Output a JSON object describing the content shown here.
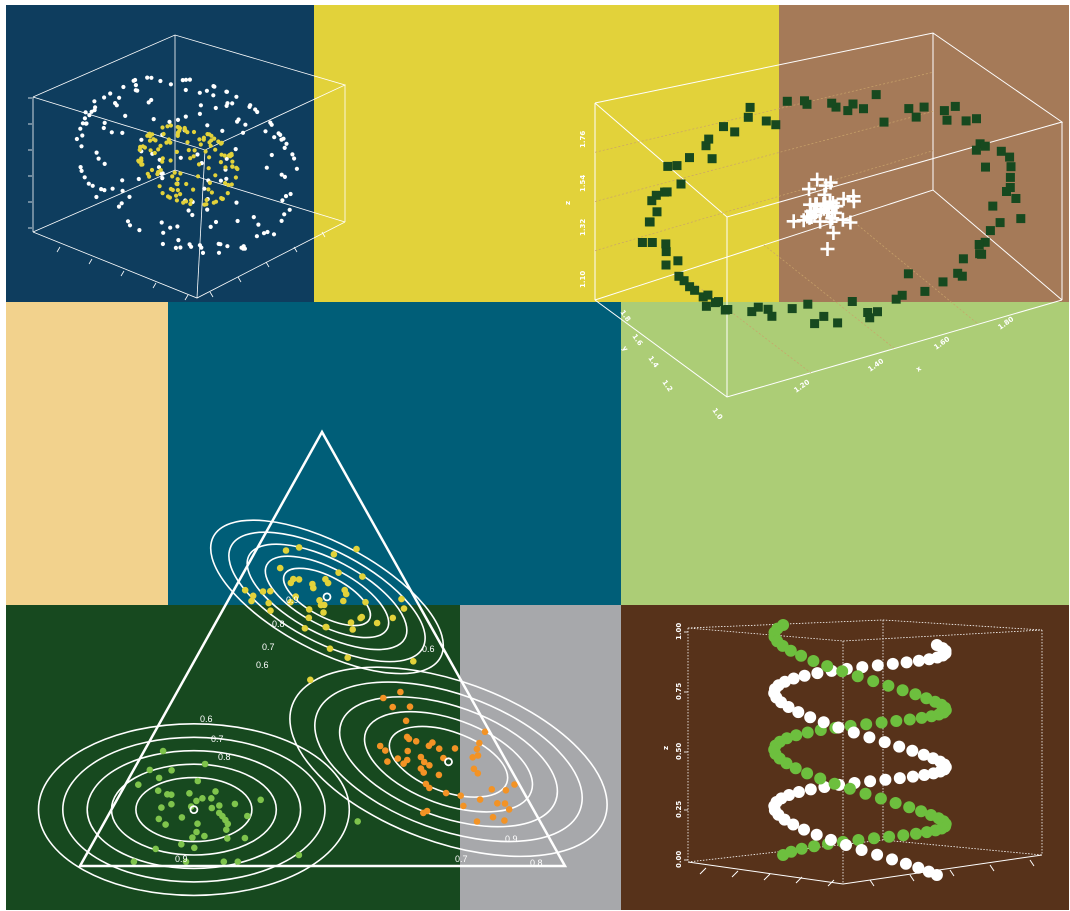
{
  "background_panels": [
    {
      "name": "panel-navy",
      "color": "#0e3d5e"
    },
    {
      "name": "panel-mustard",
      "color": "#e2d23a"
    },
    {
      "name": "panel-tan",
      "color": "#a57a58"
    },
    {
      "name": "panel-sand",
      "color": "#f2d28d"
    },
    {
      "name": "panel-teal",
      "color": "#005e78"
    },
    {
      "name": "panel-lightgreen",
      "color": "#accd76"
    },
    {
      "name": "panel-darkgreen",
      "color": "#17491f"
    },
    {
      "name": "panel-grey",
      "color": "#a7a8ab"
    },
    {
      "name": "panel-brown",
      "color": "#57321a"
    }
  ],
  "chart_data": [
    {
      "id": "sphere-3d",
      "type": "scatter",
      "dimensions": 3,
      "description_series": [
        {
          "name": "",
          "marker": "circle",
          "color": "#ffffff",
          "shape": "outer spherical shell",
          "radius": 1.0
        },
        {
          "name": "",
          "marker": "circle",
          "color": "#e2d23a",
          "shape": "inner spherical shell",
          "radius": 0.45
        }
      ],
      "title": "",
      "xlabel": "",
      "ylabel": "",
      "zlabel": "",
      "grid": false
    },
    {
      "id": "spiral-3d",
      "type": "scatter",
      "dimensions": 3,
      "series": [
        {
          "name": "",
          "marker": "square",
          "color": "#17491f",
          "shape": "helical ring"
        },
        {
          "name": "",
          "marker": "plus",
          "color": "#ffffff",
          "shape": "central cluster"
        }
      ],
      "xlabel": "x",
      "ylabel": "y",
      "zlabel": "z",
      "x_ticks": [
        "1.20",
        "1.40",
        "1.60",
        "1.80"
      ],
      "y_ticks": [
        "1.0",
        "1.2",
        "1.4",
        "1.6",
        "1.8"
      ],
      "z_ticks": [
        "1.10",
        "1.32",
        "1.54",
        "1.76"
      ],
      "xlim": [
        1.1,
        1.9
      ],
      "ylim": [
        1.0,
        1.8
      ],
      "zlim": [
        1.1,
        1.85
      ],
      "grid": true
    },
    {
      "id": "ternary",
      "type": "scatter",
      "coordinate_system": "ternary",
      "series": [
        {
          "name": "",
          "color": "#e2d23a",
          "cluster_center": [
            0.18,
            0.62,
            0.2
          ]
        },
        {
          "name": "",
          "color": "#7fc44c",
          "cluster_center": [
            0.7,
            0.13,
            0.17
          ]
        },
        {
          "name": "",
          "color": "#f39325",
          "cluster_center": [
            0.12,
            0.24,
            0.64
          ]
        }
      ],
      "contour_levels": [
        "0.6",
        "0.7",
        "0.8",
        "0.9"
      ],
      "contour_color": "#ffffff",
      "mode_markers": "open white circle at each cluster center"
    },
    {
      "id": "helix-3d",
      "type": "scatter",
      "dimensions": 3,
      "series": [
        {
          "name": "",
          "marker": "circle",
          "color": "#ffffff",
          "shape": "helix"
        },
        {
          "name": "",
          "marker": "circle",
          "color": "#6dbf3e",
          "shape": "helix (phase-shifted)"
        }
      ],
      "zlabel": "z",
      "z_ticks": [
        "0.00",
        "0.25",
        "0.50",
        "0.75",
        "1.00"
      ],
      "zlim": [
        0,
        1
      ],
      "turns": 2,
      "grid": "dotted box"
    }
  ]
}
